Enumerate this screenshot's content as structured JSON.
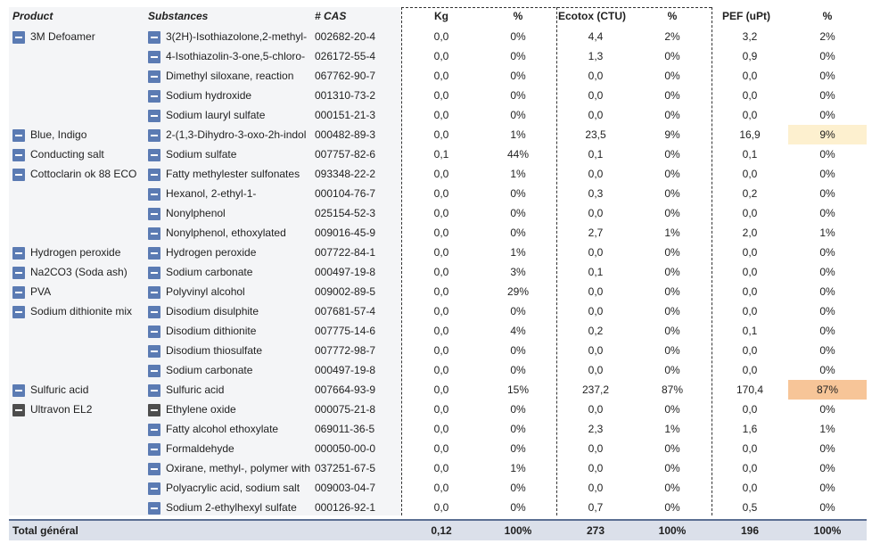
{
  "headers": {
    "product": "Product",
    "substances": "Substances",
    "cas": "# CAS",
    "kg": "Kg",
    "kg_pct": "%",
    "ecotox": "Ecotox (CTU)",
    "ecotox_pct": "%",
    "pef": "PEF (uPt)",
    "pef_pct": "%"
  },
  "colors": {
    "toggle": "#5b7bb3",
    "toggle_dark": "#4d4d4d",
    "highlight_light": "#fdf0cf",
    "highlight_strong": "#f7c598",
    "total_bg": "#dbe0ea"
  },
  "rows": [
    {
      "product": "3M Defoamer",
      "substance": "3(2H)-Isothiazolone,2-methyl-",
      "cas": "002682-20-4",
      "kg": "0,0",
      "kg_pct": "0%",
      "ecotox": "4,4",
      "ecotox_pct": "2%",
      "pef": "3,2",
      "pef_pct": "2%"
    },
    {
      "product": "",
      "substance": "4-Isothiazolin-3-one,5-chloro-",
      "cas": "026172-55-4",
      "kg": "0,0",
      "kg_pct": "0%",
      "ecotox": "1,3",
      "ecotox_pct": "0%",
      "pef": "0,9",
      "pef_pct": "0%"
    },
    {
      "product": "",
      "substance": "Dimethyl siloxane, reaction",
      "cas": "067762-90-7",
      "kg": "0,0",
      "kg_pct": "0%",
      "ecotox": "0,0",
      "ecotox_pct": "0%",
      "pef": "0,0",
      "pef_pct": "0%"
    },
    {
      "product": "",
      "substance": "Sodium hydroxide",
      "cas": "001310-73-2",
      "kg": "0,0",
      "kg_pct": "0%",
      "ecotox": "0,0",
      "ecotox_pct": "0%",
      "pef": "0,0",
      "pef_pct": "0%"
    },
    {
      "product": "",
      "substance": "Sodium lauryl sulfate",
      "cas": "000151-21-3",
      "kg": "0,0",
      "kg_pct": "0%",
      "ecotox": "0,0",
      "ecotox_pct": "0%",
      "pef": "0,0",
      "pef_pct": "0%"
    },
    {
      "product": "Blue, Indigo",
      "substance": "2-(1,3-Dihydro-3-oxo-2h-indol",
      "cas": "000482-89-3",
      "kg": "0,0",
      "kg_pct": "1%",
      "ecotox": "23,5",
      "ecotox_pct": "9%",
      "pef": "16,9",
      "pef_pct": "9%",
      "highlight": "light"
    },
    {
      "product": "Conducting salt",
      "substance": "Sodium sulfate",
      "cas": "007757-82-6",
      "kg": "0,1",
      "kg_pct": "44%",
      "ecotox": "0,1",
      "ecotox_pct": "0%",
      "pef": "0,1",
      "pef_pct": "0%"
    },
    {
      "product": "Cottoclarin ok 88 ECO",
      "substance": "Fatty methylester sulfonates",
      "cas": "093348-22-2",
      "kg": "0,0",
      "kg_pct": "1%",
      "ecotox": "0,0",
      "ecotox_pct": "0%",
      "pef": "0,0",
      "pef_pct": "0%"
    },
    {
      "product": "",
      "substance": "Hexanol, 2-ethyl-1-",
      "cas": "000104-76-7",
      "kg": "0,0",
      "kg_pct": "0%",
      "ecotox": "0,3",
      "ecotox_pct": "0%",
      "pef": "0,2",
      "pef_pct": "0%"
    },
    {
      "product": "",
      "substance": "Nonylphenol",
      "cas": "025154-52-3",
      "kg": "0,0",
      "kg_pct": "0%",
      "ecotox": "0,0",
      "ecotox_pct": "0%",
      "pef": "0,0",
      "pef_pct": "0%"
    },
    {
      "product": "",
      "substance": "Nonylphenol, ethoxylated",
      "cas": "009016-45-9",
      "kg": "0,0",
      "kg_pct": "0%",
      "ecotox": "2,7",
      "ecotox_pct": "1%",
      "pef": "2,0",
      "pef_pct": "1%"
    },
    {
      "product": "Hydrogen peroxide",
      "substance": "Hydrogen peroxide",
      "cas": "007722-84-1",
      "kg": "0,0",
      "kg_pct": "1%",
      "ecotox": "0,0",
      "ecotox_pct": "0%",
      "pef": "0,0",
      "pef_pct": "0%"
    },
    {
      "product": "Na2CO3 (Soda ash)",
      "substance": "Sodium carbonate",
      "cas": "000497-19-8",
      "kg": "0,0",
      "kg_pct": "3%",
      "ecotox": "0,1",
      "ecotox_pct": "0%",
      "pef": "0,0",
      "pef_pct": "0%"
    },
    {
      "product": "PVA",
      "substance": "Polyvinyl alcohol",
      "cas": "009002-89-5",
      "kg": "0,0",
      "kg_pct": "29%",
      "ecotox": "0,0",
      "ecotox_pct": "0%",
      "pef": "0,0",
      "pef_pct": "0%"
    },
    {
      "product": "Sodium dithionite mix",
      "substance": "Disodium disulphite",
      "cas": "007681-57-4",
      "kg": "0,0",
      "kg_pct": "0%",
      "ecotox": "0,0",
      "ecotox_pct": "0%",
      "pef": "0,0",
      "pef_pct": "0%"
    },
    {
      "product": "",
      "substance": "Disodium dithionite",
      "cas": "007775-14-6",
      "kg": "0,0",
      "kg_pct": "4%",
      "ecotox": "0,2",
      "ecotox_pct": "0%",
      "pef": "0,1",
      "pef_pct": "0%"
    },
    {
      "product": "",
      "substance": "Disodium thiosulfate",
      "cas": "007772-98-7",
      "kg": "0,0",
      "kg_pct": "0%",
      "ecotox": "0,0",
      "ecotox_pct": "0%",
      "pef": "0,0",
      "pef_pct": "0%"
    },
    {
      "product": "",
      "substance": "Sodium carbonate",
      "cas": "000497-19-8",
      "kg": "0,0",
      "kg_pct": "0%",
      "ecotox": "0,0",
      "ecotox_pct": "0%",
      "pef": "0,0",
      "pef_pct": "0%"
    },
    {
      "product": "Sulfuric acid",
      "substance": "Sulfuric acid",
      "cas": "007664-93-9",
      "kg": "0,0",
      "kg_pct": "15%",
      "ecotox": "237,2",
      "ecotox_pct": "87%",
      "pef": "170,4",
      "pef_pct": "87%",
      "highlight": "strong"
    },
    {
      "product": "Ultravon EL2",
      "substance": "Ethylene oxide",
      "cas": "000075-21-8",
      "kg": "0,0",
      "kg_pct": "0%",
      "ecotox": "0,0",
      "ecotox_pct": "0%",
      "pef": "0,0",
      "pef_pct": "0%",
      "dark": true
    },
    {
      "product": "",
      "substance": "Fatty alcohol ethoxylate",
      "cas": "069011-36-5",
      "kg": "0,0",
      "kg_pct": "0%",
      "ecotox": "2,3",
      "ecotox_pct": "1%",
      "pef": "1,6",
      "pef_pct": "1%"
    },
    {
      "product": "",
      "substance": "Formaldehyde",
      "cas": "000050-00-0",
      "kg": "0,0",
      "kg_pct": "0%",
      "ecotox": "0,0",
      "ecotox_pct": "0%",
      "pef": "0,0",
      "pef_pct": "0%"
    },
    {
      "product": "",
      "substance": "Oxirane, methyl-, polymer with",
      "cas": "037251-67-5",
      "kg": "0,0",
      "kg_pct": "1%",
      "ecotox": "0,0",
      "ecotox_pct": "0%",
      "pef": "0,0",
      "pef_pct": "0%"
    },
    {
      "product": "",
      "substance": "Polyacrylic acid, sodium salt",
      "cas": "009003-04-7",
      "kg": "0,0",
      "kg_pct": "0%",
      "ecotox": "0,0",
      "ecotox_pct": "0%",
      "pef": "0,0",
      "pef_pct": "0%"
    },
    {
      "product": "",
      "substance": "Sodium 2-ethylhexyl sulfate",
      "cas": "000126-92-1",
      "kg": "0,0",
      "kg_pct": "0%",
      "ecotox": "0,7",
      "ecotox_pct": "0%",
      "pef": "0,5",
      "pef_pct": "0%"
    }
  ],
  "total": {
    "label": "Total général",
    "kg": "0,12",
    "kg_pct": "100%",
    "ecotox": "273",
    "ecotox_pct": "100%",
    "pef": "196",
    "pef_pct": "100%"
  }
}
